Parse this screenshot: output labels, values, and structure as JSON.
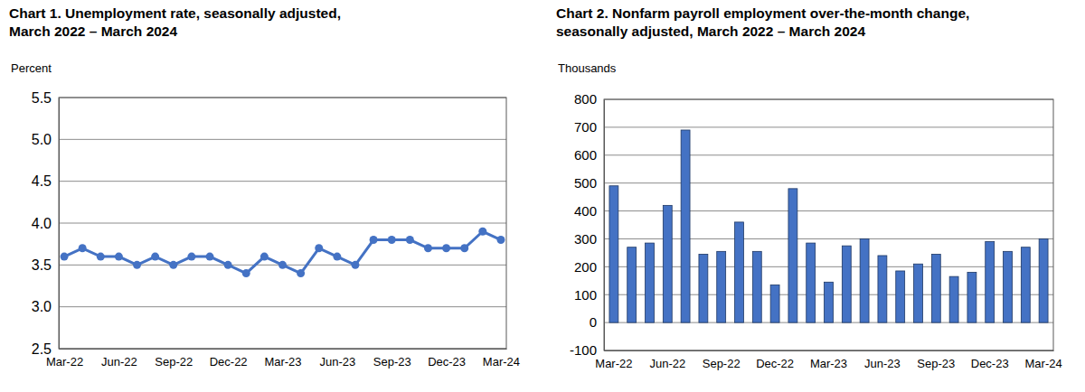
{
  "chart_data": [
    {
      "type": "line",
      "title": [
        "Chart 1. Unemployment rate, seasonally adjusted,",
        "March 2022 – March 2024"
      ],
      "y_label": "Percent",
      "categories": [
        "Mar-22",
        null,
        null,
        "Jun-22",
        null,
        null,
        "Sep-22",
        null,
        null,
        "Dec-22",
        null,
        null,
        "Mar-23",
        null,
        null,
        "Jun-23",
        null,
        null,
        "Sep-23",
        null,
        null,
        "Dec-23",
        null,
        null,
        "Mar-24"
      ],
      "values": [
        3.6,
        3.7,
        3.6,
        3.6,
        3.5,
        3.6,
        3.5,
        3.6,
        3.6,
        3.5,
        3.4,
        3.6,
        3.5,
        3.4,
        3.7,
        3.6,
        3.5,
        3.8,
        3.8,
        3.8,
        3.7,
        3.7,
        3.7,
        3.9,
        3.8
      ],
      "color": "#4472c4",
      "marker": "circle",
      "ylim": [
        2.5,
        5.5
      ],
      "yticks": [
        2.5,
        {
          "value": 3,
          "label": "3.0"
        },
        3.5,
        {
          "value": 4,
          "label": "4.0"
        },
        4.5,
        {
          "value": 5,
          "label": "5.0"
        },
        5.5
      ],
      "grid": true
    },
    {
      "type": "bar",
      "title": [
        "Chart 2. Nonfarm payroll employment over-the-month change,",
        "seasonally adjusted, March 2022 – March 2024"
      ],
      "y_label": "Thousands",
      "categories": [
        "Mar-22",
        null,
        null,
        "Jun-22",
        null,
        null,
        "Sep-22",
        null,
        null,
        "Dec-22",
        null,
        null,
        "Mar-23",
        null,
        null,
        "Jun-23",
        null,
        null,
        "Sep-23",
        null,
        null,
        "Dec-23",
        null,
        null,
        "Mar-24"
      ],
      "values": [
        490,
        270,
        285,
        420,
        690,
        245,
        255,
        360,
        255,
        135,
        480,
        285,
        145,
        275,
        300,
        240,
        185,
        210,
        245,
        165,
        180,
        290,
        255,
        270,
        300
      ],
      "color": "#4472c4",
      "ylim": [
        -100,
        800
      ],
      "yticks": [
        -100,
        0,
        100,
        200,
        300,
        400,
        500,
        600,
        700,
        800
      ],
      "grid": true
    }
  ]
}
